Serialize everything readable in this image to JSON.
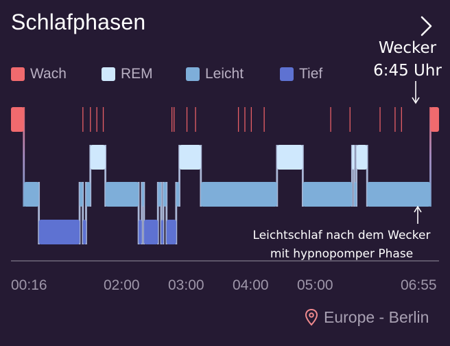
{
  "header": {
    "title": "Schlafphasen",
    "nav_icon": "chevron-right-icon"
  },
  "legend": [
    {
      "label": "Wach",
      "color": "#f06a6e"
    },
    {
      "label": "REM",
      "color": "#cfe8fd"
    },
    {
      "label": "Leicht",
      "color": "#7eaed9"
    },
    {
      "label": "Tief",
      "color": "#5e72d2"
    }
  ],
  "annotations": {
    "alarm_line1": "Wecker",
    "alarm_line2": "6:45 Uhr",
    "light_sleep_line1": "Leichtschlaf nach dem Wecker",
    "light_sleep_line2": "mit hypnopomper Phase"
  },
  "x_axis": {
    "ticks": [
      "00:16",
      "02:00",
      "03:00",
      "04:00",
      "05:00",
      "06:55"
    ]
  },
  "location": {
    "icon": "location-pin-icon",
    "text": "Europe - Berlin"
  },
  "chart_data": {
    "type": "hypnogram",
    "title": "Schlafphasen",
    "time_start": "00:16",
    "time_end": "06:55",
    "stage_order": [
      "Wach",
      "REM",
      "Leicht",
      "Tief"
    ],
    "segments": [
      {
        "start": "00:16",
        "end": "00:28",
        "stage": "Wach"
      },
      {
        "start": "00:28",
        "end": "00:42",
        "stage": "Leicht"
      },
      {
        "start": "00:42",
        "end": "01:20",
        "stage": "Tief"
      },
      {
        "start": "01:20",
        "end": "01:23",
        "stage": "Leicht"
      },
      {
        "start": "01:23",
        "end": "01:26",
        "stage": "Tief"
      },
      {
        "start": "01:26",
        "end": "01:30",
        "stage": "Leicht"
      },
      {
        "start": "01:30",
        "end": "01:44",
        "stage": "REM"
      },
      {
        "start": "01:44",
        "end": "02:15",
        "stage": "Leicht"
      },
      {
        "start": "02:15",
        "end": "02:18",
        "stage": "Tief"
      },
      {
        "start": "02:18",
        "end": "02:20",
        "stage": "Leicht"
      },
      {
        "start": "02:20",
        "end": "02:33",
        "stage": "Tief"
      },
      {
        "start": "02:33",
        "end": "02:36",
        "stage": "Leicht"
      },
      {
        "start": "02:36",
        "end": "02:38",
        "stage": "Tief"
      },
      {
        "start": "02:38",
        "end": "02:41",
        "stage": "Leicht"
      },
      {
        "start": "02:41",
        "end": "02:50",
        "stage": "Tief"
      },
      {
        "start": "02:50",
        "end": "02:53",
        "stage": "Leicht"
      },
      {
        "start": "02:53",
        "end": "03:13",
        "stage": "REM"
      },
      {
        "start": "03:13",
        "end": "04:24",
        "stage": "Leicht"
      },
      {
        "start": "04:24",
        "end": "04:48",
        "stage": "REM"
      },
      {
        "start": "04:48",
        "end": "05:34",
        "stage": "Leicht"
      },
      {
        "start": "05:34",
        "end": "05:36",
        "stage": "REM"
      },
      {
        "start": "05:36",
        "end": "05:38",
        "stage": "Leicht"
      },
      {
        "start": "05:38",
        "end": "05:48",
        "stage": "REM"
      },
      {
        "start": "05:48",
        "end": "06:47",
        "stage": "Leicht"
      },
      {
        "start": "06:47",
        "end": "06:55",
        "stage": "Wach"
      }
    ],
    "wake_ticks": [
      "01:23",
      "01:30",
      "01:36",
      "01:42",
      "02:46",
      "02:48",
      "03:00",
      "03:08",
      "03:48",
      "03:54",
      "04:00",
      "04:12",
      "05:14",
      "05:32",
      "06:00",
      "06:14",
      "06:20"
    ],
    "alarm_time": "06:45"
  }
}
